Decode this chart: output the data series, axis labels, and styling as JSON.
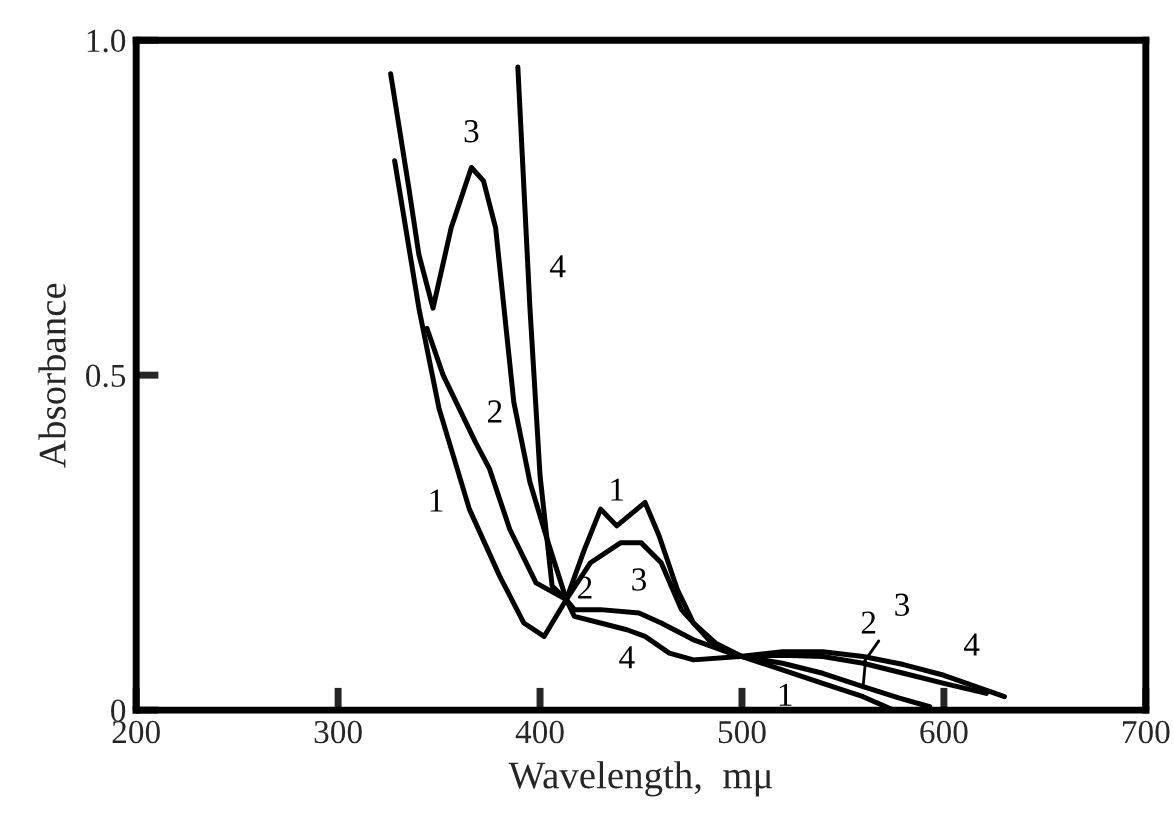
{
  "chart_data": {
    "type": "line",
    "xlabel": "Wavelength,  mμ",
    "ylabel": "Absorbance",
    "xlim": [
      200,
      700
    ],
    "ylim": [
      0,
      1.0
    ],
    "xticks": [
      200,
      300,
      400,
      500,
      600,
      700
    ],
    "yticks": [
      0,
      0.5,
      {
        "value": 1.0,
        "label": "1.0"
      }
    ],
    "grid": false,
    "marker": "none",
    "line_style": "solid",
    "series": [
      {
        "name": "1",
        "color": "#000000",
        "x": [
          328,
          340,
          350,
          365,
          380,
          392,
          402,
          413,
          422,
          430,
          438,
          452,
          459,
          468,
          476,
          487,
          500,
          520,
          540,
          560,
          575
        ],
        "values": [
          0.82,
          0.6,
          0.45,
          0.3,
          0.2,
          0.13,
          0.11,
          0.165,
          0.24,
          0.3,
          0.275,
          0.31,
          0.26,
          0.18,
          0.13,
          0.1,
          0.08,
          0.06,
          0.04,
          0.02,
          0.0
        ]
      },
      {
        "name": "2",
        "color": "#000000",
        "x": [
          344,
          352,
          360,
          368,
          375,
          385,
          398,
          413,
          425,
          440,
          450,
          460,
          470,
          485,
          500,
          520,
          540,
          560,
          578,
          593
        ],
        "values": [
          0.57,
          0.5,
          0.45,
          0.4,
          0.36,
          0.27,
          0.19,
          0.165,
          0.22,
          0.25,
          0.25,
          0.22,
          0.15,
          0.1,
          0.08,
          0.07,
          0.055,
          0.035,
          0.018,
          0.005
        ]
      },
      {
        "name": "3",
        "color": "#000000",
        "x": [
          326,
          335,
          340,
          347,
          356,
          366,
          372,
          378,
          387,
          395,
          403,
          413,
          417,
          430,
          449,
          460,
          476,
          499,
          520,
          540,
          560,
          580,
          600,
          621
        ],
        "values": [
          0.95,
          0.78,
          0.68,
          0.6,
          0.72,
          0.81,
          0.79,
          0.72,
          0.46,
          0.34,
          0.26,
          0.165,
          0.15,
          0.15,
          0.145,
          0.13,
          0.105,
          0.08,
          0.082,
          0.08,
          0.07,
          0.055,
          0.04,
          0.025
        ]
      },
      {
        "name": "4",
        "color": "#000000",
        "x": [
          389,
          395,
          400,
          406,
          413,
          417,
          430,
          443,
          452,
          464,
          476,
          499,
          520,
          540,
          560,
          580,
          600,
          630
        ],
        "values": [
          0.96,
          0.6,
          0.35,
          0.185,
          0.165,
          0.14,
          0.13,
          0.12,
          0.11,
          0.085,
          0.075,
          0.08,
          0.087,
          0.087,
          0.08,
          0.068,
          0.052,
          0.02
        ]
      }
    ]
  }
}
